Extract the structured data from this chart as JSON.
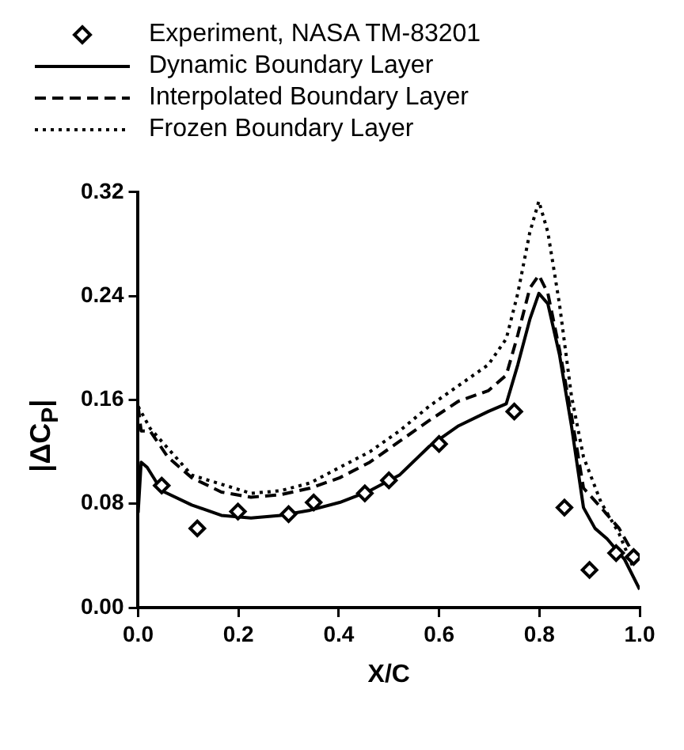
{
  "chart_data": {
    "type": "line",
    "xlabel": "X/C",
    "ylabel": "|ΔC$_{P}$|",
    "xlim": [
      0,
      1
    ],
    "ylim": [
      0,
      0.32
    ],
    "xticks": [
      {
        "value": 0,
        "label": "0.0"
      },
      0.2,
      0.4,
      0.6,
      0.8,
      {
        "value": 1,
        "label": "1.0"
      }
    ],
    "yticks": [
      {
        "value": 0,
        "label": "0.00"
      },
      {
        "value": 0.08,
        "label": "0.08"
      },
      {
        "value": 0.16,
        "label": "0.16"
      },
      {
        "value": 0.24,
        "label": "0.24"
      },
      {
        "value": 0.32,
        "label": "0.32"
      }
    ],
    "grid": false,
    "legend": "top",
    "series": [
      {
        "name": "Experiment, NASA TM-83201",
        "type": "scatter",
        "marker": "diamond",
        "color": "#000000",
        "x": [
          0.047,
          0.118,
          0.199,
          0.3,
          0.35,
          0.452,
          0.5,
          0.6,
          0.75,
          0.85,
          0.9,
          0.953,
          0.988
        ],
        "values": [
          0.094,
          0.061,
          0.074,
          0.072,
          0.081,
          0.088,
          0.098,
          0.126,
          0.151,
          0.077,
          0.029,
          0.042,
          0.039
        ]
      },
      {
        "name": "Dynamic Boundary Layer",
        "line_style": "solid",
        "color": "#000000",
        "x": [
          0,
          0.006,
          0.018,
          0.047,
          0.107,
          0.166,
          0.225,
          0.284,
          0.343,
          0.402,
          0.462,
          0.521,
          0.58,
          0.639,
          0.698,
          0.734,
          0.757,
          0.781,
          0.799,
          0.817,
          0.84,
          0.864,
          0.888,
          0.911,
          0.935,
          0.97,
          1.0
        ],
        "values": [
          0.073,
          0.112,
          0.108,
          0.09,
          0.079,
          0.071,
          0.069,
          0.071,
          0.075,
          0.081,
          0.09,
          0.102,
          0.124,
          0.14,
          0.151,
          0.157,
          0.187,
          0.222,
          0.242,
          0.234,
          0.195,
          0.14,
          0.077,
          0.061,
          0.053,
          0.037,
          0.014
        ]
      },
      {
        "name": "Interpolated Boundary Layer",
        "line_style": "dashed",
        "color": "#000000",
        "x": [
          0,
          0.006,
          0.024,
          0.059,
          0.107,
          0.166,
          0.225,
          0.284,
          0.343,
          0.402,
          0.462,
          0.521,
          0.58,
          0.639,
          0.698,
          0.734,
          0.757,
          0.781,
          0.799,
          0.817,
          0.84,
          0.864,
          0.888,
          0.923,
          0.959,
          0.994
        ],
        "values": [
          0.155,
          0.136,
          0.136,
          0.116,
          0.1,
          0.089,
          0.085,
          0.087,
          0.092,
          0.1,
          0.112,
          0.128,
          0.144,
          0.159,
          0.167,
          0.179,
          0.21,
          0.246,
          0.256,
          0.242,
          0.199,
          0.148,
          0.092,
          0.077,
          0.061,
          0.037
        ]
      },
      {
        "name": "Frozen Boundary Layer",
        "line_style": "dotted",
        "color": "#000000",
        "x": [
          0,
          0.024,
          0.107,
          0.225,
          0.284,
          0.343,
          0.402,
          0.462,
          0.521,
          0.58,
          0.639,
          0.698,
          0.734,
          0.757,
          0.781,
          0.799,
          0.817,
          0.84,
          0.864,
          0.888,
          0.923,
          0.959,
          0.988
        ],
        "values": [
          0.155,
          0.138,
          0.102,
          0.088,
          0.09,
          0.096,
          0.108,
          0.12,
          0.136,
          0.155,
          0.171,
          0.187,
          0.207,
          0.242,
          0.289,
          0.313,
          0.289,
          0.234,
          0.163,
          0.116,
          0.081,
          0.057,
          0.03
        ]
      }
    ]
  }
}
